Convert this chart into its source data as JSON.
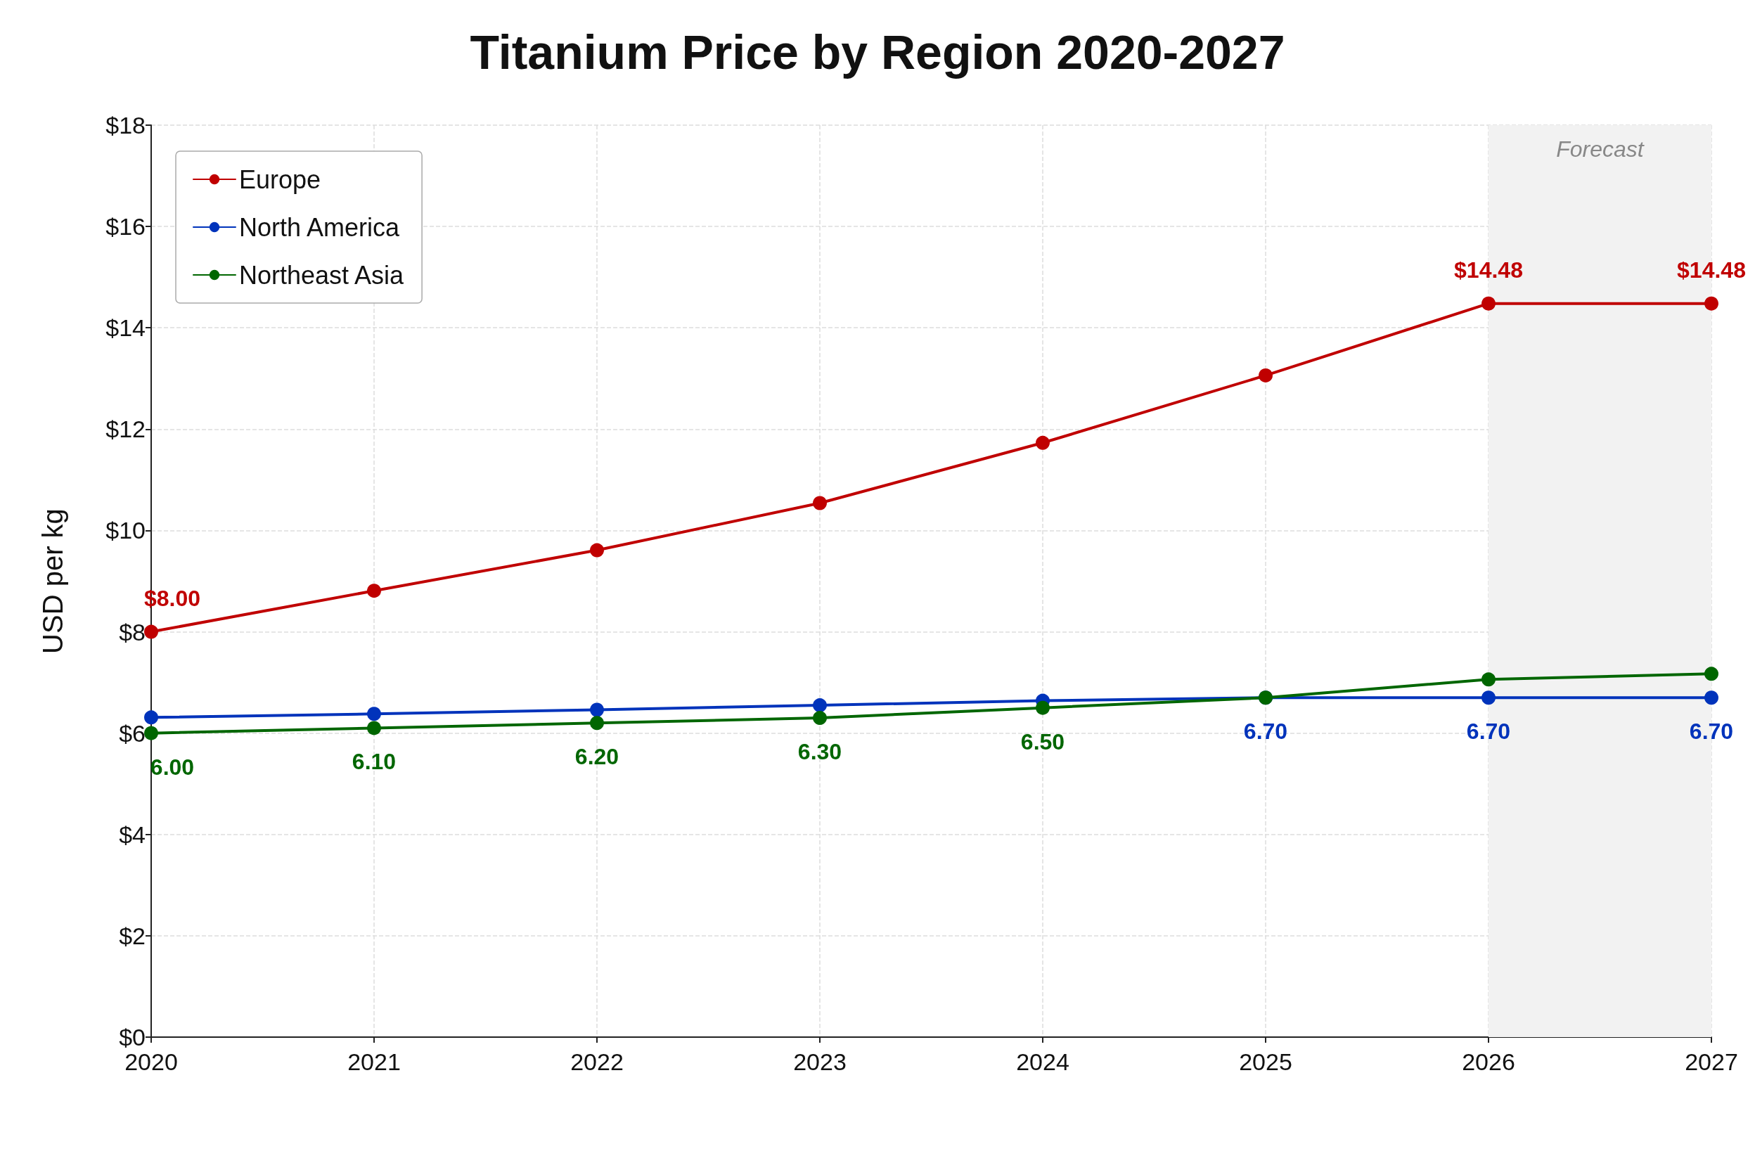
{
  "chart_data": {
    "type": "line",
    "title": "Titanium Price by Region 2020-2027",
    "ylabel": "USD per kg",
    "x": [
      2020,
      2021,
      2022,
      2023,
      2024,
      2025,
      2026,
      2027
    ],
    "series": [
      {
        "name": "Europe",
        "color": "#c00000",
        "values": [
          8.0,
          8.81,
          9.61,
          10.54,
          11.73,
          13.06,
          14.48,
          14.48
        ],
        "value_labels": [
          "$8.00",
          null,
          null,
          null,
          null,
          null,
          "$14.48",
          "$14.48"
        ]
      },
      {
        "name": "North America",
        "color": "#0033bb",
        "values": [
          6.31,
          6.38,
          6.46,
          6.55,
          6.64,
          6.7,
          6.7,
          6.7
        ],
        "value_labels": [
          null,
          null,
          null,
          null,
          null,
          "6.70",
          "6.70",
          "6.70"
        ]
      },
      {
        "name": "Northeast Asia",
        "color": "#006600",
        "values": [
          6.0,
          6.1,
          6.2,
          6.3,
          6.5,
          6.7,
          7.06,
          7.17
        ],
        "value_labels": [
          "6.00",
          "6.10",
          "6.20",
          "6.30",
          "6.50",
          null,
          null,
          null
        ]
      }
    ],
    "xlim": [
      2020,
      2027
    ],
    "xticks": [
      2020,
      2021,
      2022,
      2023,
      2024,
      2025,
      2026,
      2027
    ],
    "ylim": [
      0,
      18
    ],
    "yticks": [
      {
        "value": 0,
        "label": "$0"
      },
      {
        "value": 2,
        "label": "$2"
      },
      {
        "value": 4,
        "label": "$4"
      },
      {
        "value": 6,
        "label": "$6"
      },
      {
        "value": 8,
        "label": "$8"
      },
      {
        "value": 10,
        "label": "$10"
      },
      {
        "value": 12,
        "label": "$12"
      },
      {
        "value": 14,
        "label": "$14"
      },
      {
        "value": 16,
        "label": "$16"
      },
      {
        "value": 18,
        "label": "$18"
      }
    ],
    "bands": [
      {
        "axis": "x",
        "from": 2026,
        "to": 2027,
        "label": "Forecast",
        "color": "#f2f2f2"
      }
    ],
    "grid": true,
    "legend": "top left",
    "marker": "circle",
    "line_style": "solid"
  }
}
